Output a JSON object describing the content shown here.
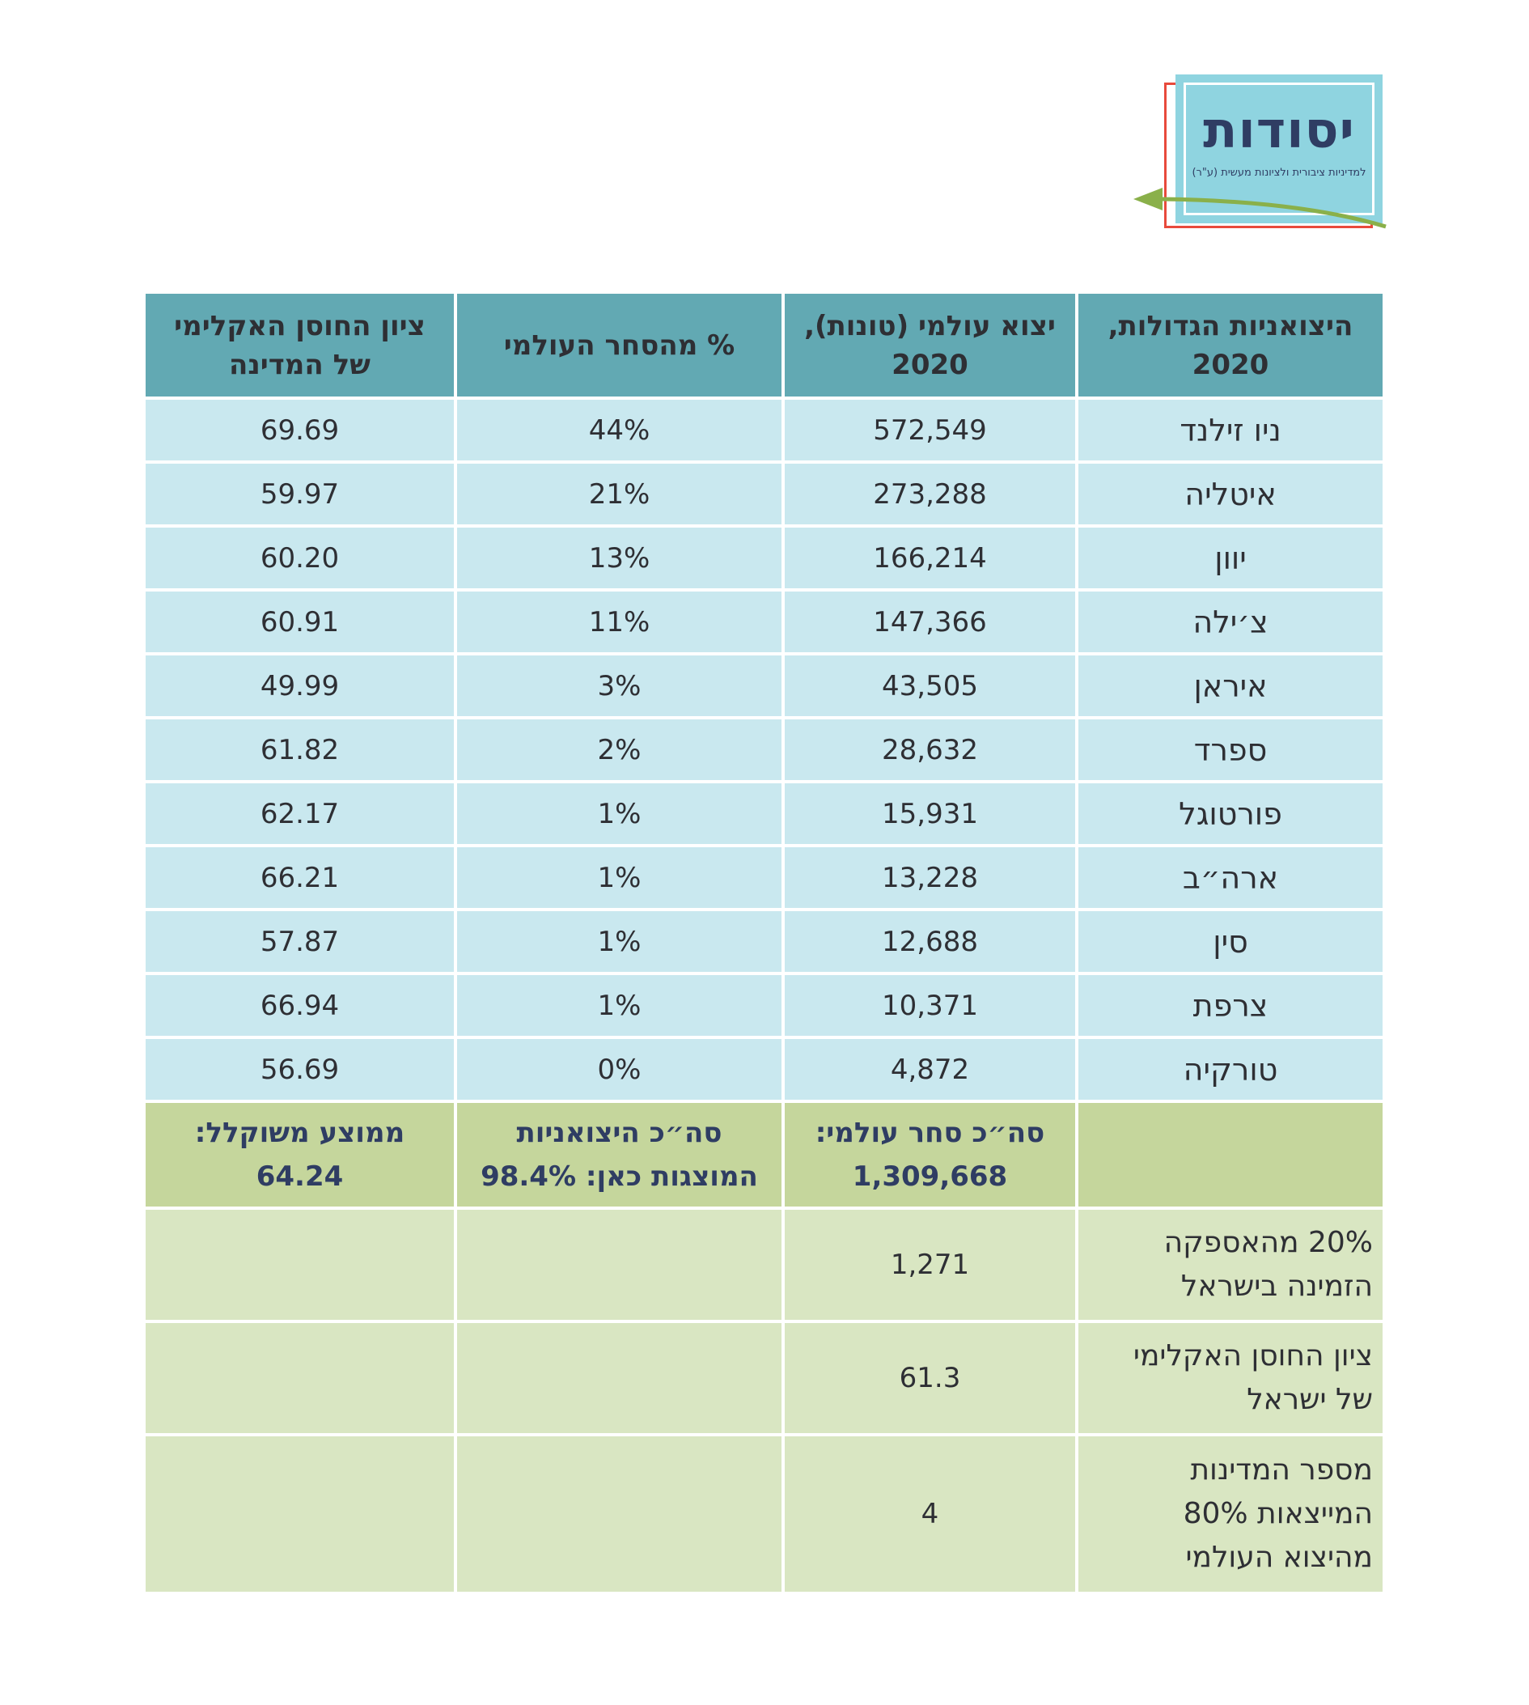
{
  "logo": {
    "brand": "יסודות",
    "tagline": "למדיניות ציבורית ולציונות מעשית (ע\"ר)"
  },
  "table": {
    "headers": [
      {
        "line1": "היצואניות הגדולות,",
        "line2": "2020"
      },
      {
        "line1": "יצוא עולמי (טונות),",
        "line2": "2020"
      },
      {
        "line1": "% מהסחר העולמי",
        "line2": ""
      },
      {
        "line1": "ציון החוסן האקלימי",
        "line2": "של המדינה"
      }
    ],
    "rows": [
      {
        "country": "ניו זילנד",
        "exports": "572,549",
        "share": "44%",
        "score": "69.69"
      },
      {
        "country": "איטליה",
        "exports": "273,288",
        "share": "21%",
        "score": "59.97"
      },
      {
        "country": "יוון",
        "exports": "166,214",
        "share": "13%",
        "score": "60.20"
      },
      {
        "country": "צ׳ילה",
        "exports": "147,366",
        "share": "11%",
        "score": "60.91"
      },
      {
        "country": "איראן",
        "exports": "43,505",
        "share": "3%",
        "score": "49.99"
      },
      {
        "country": "ספרד",
        "exports": "28,632",
        "share": "2%",
        "score": "61.82"
      },
      {
        "country": "פורטוגל",
        "exports": "15,931",
        "share": "1%",
        "score": "62.17"
      },
      {
        "country": "ארה״ב",
        "exports": "13,228",
        "share": "1%",
        "score": "66.21"
      },
      {
        "country": "סין",
        "exports": "12,688",
        "share": "1%",
        "score": "57.87"
      },
      {
        "country": "צרפת",
        "exports": "10,371",
        "share": "1%",
        "score": "66.94"
      },
      {
        "country": "טורקיה",
        "exports": "4,872",
        "share": "0%",
        "score": "56.69"
      }
    ],
    "totals": {
      "exports_label": "סה״כ סחר עולמי:",
      "exports_value": "1,309,668",
      "share_label": "סה״כ היצואניות",
      "share_value": "המוצגות כאן: 98.4%",
      "score_label": "ממוצע משוקלל:",
      "score_value": "64.24"
    },
    "extra": [
      {
        "label_lines": [
          "20% מהאספקה",
          "הזמינה בישראל"
        ],
        "value": "1,271"
      },
      {
        "label_lines": [
          "ציון החוסן האקלימי",
          "של ישראל"
        ],
        "value": "61.3"
      },
      {
        "label_lines": [
          "מספר המדינות",
          "המייצאות 80%",
          "מהיצוא העולמי"
        ],
        "value": "4"
      }
    ]
  },
  "colors": {
    "header": "#62a9b3",
    "row": "#c9e8ef",
    "total": "#c5d69c",
    "extra": "#d9e6c2",
    "logo_blue": "#8fd4e0",
    "logo_red": "#e84a3c",
    "logo_green": "#8ab04a"
  }
}
